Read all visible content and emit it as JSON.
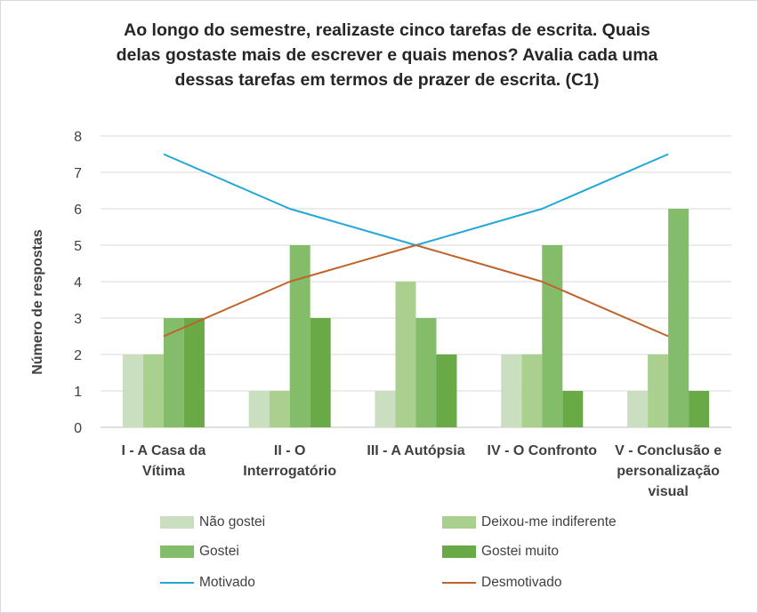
{
  "title_lines": [
    "Ao longo do semestre, realizaste cinco tarefas de escrita. Quais",
    "delas gostaste mais de escrever e quais menos? Avalia cada uma",
    "dessas tarefas em termos de prazer de escrita.  (C1)"
  ],
  "chart_data": {
    "type": "bar",
    "title": "Ao longo do semestre, realizaste cinco tarefas de escrita. Quais delas gostaste mais de escrever e quais menos? Avalia cada uma dessas tarefas em termos de prazer de escrita.  (C1)",
    "xlabel": "",
    "ylabel": "Número de respostas",
    "ylim": [
      0,
      8
    ],
    "yticks": [
      "0",
      "1",
      "2",
      "3",
      "4",
      "5",
      "6",
      "7",
      "8"
    ],
    "grid": true,
    "legend_position": "bottom",
    "categories": [
      [
        "I - A Casa da",
        "Vítima"
      ],
      [
        "II - O",
        "Interrogatório"
      ],
      [
        "III - A Autópsia"
      ],
      [
        "IV - O Confronto"
      ],
      [
        "V - Conclusão e",
        "personalização",
        "visual"
      ]
    ],
    "series": [
      {
        "name": "Não gostei",
        "kind": "bar",
        "color": "#c9dfc0",
        "values": [
          2,
          1,
          1,
          2,
          1
        ]
      },
      {
        "name": "Deixou-me indiferente",
        "kind": "bar",
        "color": "#a9d08e",
        "values": [
          2,
          1,
          4,
          2,
          2
        ]
      },
      {
        "name": "Gostei",
        "kind": "bar",
        "color": "#84bd6a",
        "values": [
          3,
          5,
          3,
          5,
          6
        ]
      },
      {
        "name": "Gostei muito",
        "kind": "bar",
        "color": "#6aaa46",
        "values": [
          3,
          3,
          2,
          1,
          1
        ]
      },
      {
        "name": "Motivado",
        "kind": "line",
        "color": "#22a7d6",
        "values": [
          7.5,
          6,
          5,
          6,
          7.5
        ]
      },
      {
        "name": "Desmotivado",
        "kind": "line",
        "color": "#c0632b",
        "values": [
          2.5,
          4,
          5,
          4,
          2.5
        ]
      }
    ]
  }
}
